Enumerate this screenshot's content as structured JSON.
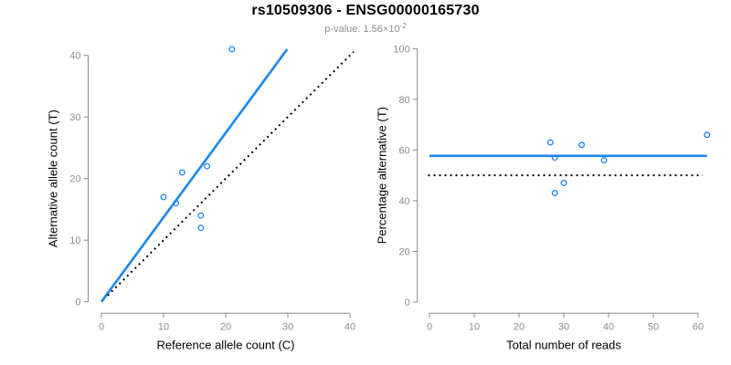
{
  "header": {
    "title": "rs10509306 - ENSG00000165730",
    "pvalue_prefix": "p-value: 1.56×10",
    "pvalue_exponent": "-2"
  },
  "colors": {
    "accent_blue": "#1c86ee",
    "line_black": "#000000",
    "axis_gray": "#888888",
    "tick_label_gray": "#8c8c8c",
    "label_black": "#000000",
    "subtitle_gray": "#8c8c8c"
  },
  "chart_data": [
    {
      "type": "scatter",
      "name": "allele-count-scatter",
      "xlabel": "Reference allele count (C)",
      "ylabel": "Alternative allele count (T)",
      "xlim": [
        0,
        40
      ],
      "ylim": [
        0,
        40
      ],
      "xticks": [
        0,
        10,
        20,
        30,
        40
      ],
      "yticks": [
        0,
        10,
        20,
        30,
        40
      ],
      "points": [
        [
          21,
          41
        ],
        [
          17,
          22
        ],
        [
          13,
          21
        ],
        [
          10,
          17
        ],
        [
          12,
          16
        ],
        [
          16,
          14
        ],
        [
          16,
          12
        ]
      ],
      "lines": [
        {
          "name": "fit-line",
          "style": "solid",
          "color": "#1c86ee",
          "from": [
            0,
            0
          ],
          "to": [
            29.9,
            41.0
          ]
        },
        {
          "name": "identity-line",
          "style": "dotted",
          "color": "#000000",
          "from": [
            1,
            1
          ],
          "to": [
            40.6,
            40.6
          ]
        }
      ]
    },
    {
      "type": "scatter",
      "name": "percentage-reads-scatter",
      "xlabel": "Total number of reads",
      "ylabel": "Percentage alternative (T)",
      "xlim": [
        0,
        60
      ],
      "ylim": [
        0,
        100
      ],
      "xticks": [
        0,
        10,
        20,
        30,
        40,
        50,
        60
      ],
      "yticks": [
        0,
        20,
        40,
        60,
        80,
        100
      ],
      "points": [
        [
          27,
          63
        ],
        [
          34,
          62
        ],
        [
          28,
          57
        ],
        [
          39,
          56
        ],
        [
          30,
          47
        ],
        [
          28,
          43
        ],
        [
          62,
          66
        ]
      ],
      "lines": [
        {
          "name": "fit-line",
          "style": "solid",
          "color": "#1c86ee",
          "from": [
            0,
            57.7
          ],
          "to": [
            62,
            57.7
          ]
        },
        {
          "name": "expected-line",
          "style": "dotted",
          "color": "#000000",
          "from": [
            -0.3,
            50
          ],
          "to": [
            61,
            50
          ]
        }
      ]
    }
  ]
}
